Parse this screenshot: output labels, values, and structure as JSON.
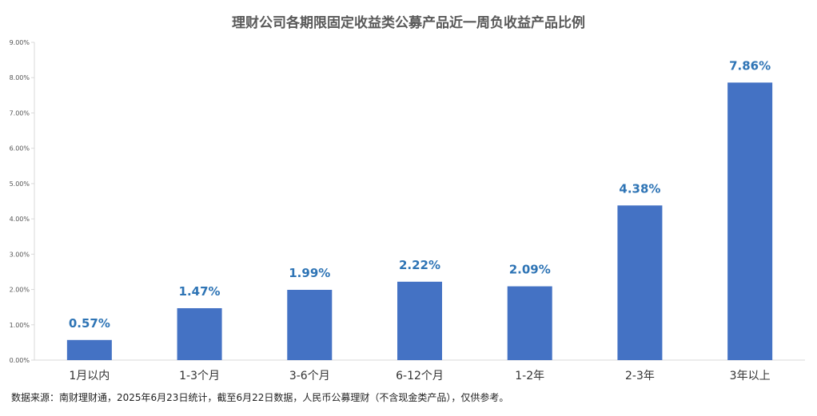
{
  "chart_data": {
    "type": "bar",
    "title": "理财公司各期限固定收益类公募产品近一周负收益产品比例",
    "categories": [
      "1月以内",
      "1-3个月",
      "3-6个月",
      "6-12个月",
      "1-2年",
      "2-3年",
      "3年以上"
    ],
    "values": [
      0.57,
      1.47,
      1.99,
      2.22,
      2.09,
      4.38,
      7.86
    ],
    "data_labels": [
      "0.57%",
      "1.47%",
      "1.99%",
      "2.22%",
      "2.09%",
      "4.38%",
      "7.86%"
    ],
    "y_ticks": [
      "0.00%",
      "1.00%",
      "2.00%",
      "3.00%",
      "4.00%",
      "5.00%",
      "6.00%",
      "7.00%",
      "8.00%",
      "9.00%"
    ],
    "ylim": [
      0,
      9
    ],
    "xlabel": "",
    "ylabel": "",
    "grid": false,
    "bar_color": "#4472C4",
    "label_color": "#2E74B5"
  },
  "source_note": "数据来源：南财理财通，2025年6月23日统计，截至6月22日数据，人民币公募理财（不含现金类产品），仅供参考。"
}
